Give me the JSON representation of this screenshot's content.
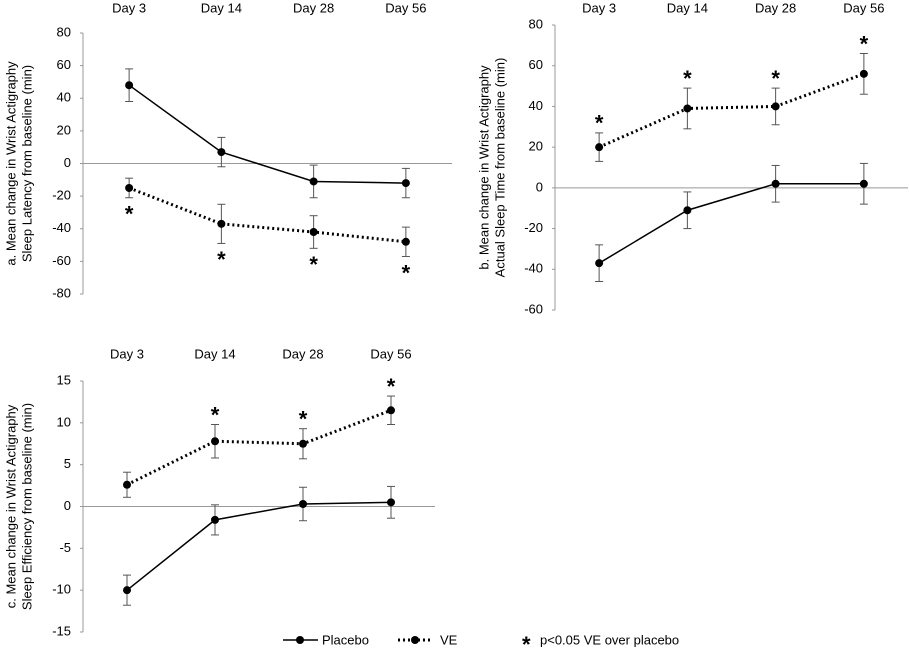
{
  "chart_data": [
    {
      "type": "line",
      "ylabel": [
        "a. Mean change in Wrist Actigraphy",
        "Sleep Latency from baseline (min)"
      ],
      "categories": [
        "Day 3",
        "Day 14",
        "Day 28",
        "Day 56"
      ],
      "ylim": [
        -80,
        80
      ],
      "yticks": [
        -80,
        -60,
        -40,
        -20,
        0,
        20,
        40,
        60,
        80
      ],
      "series": [
        {
          "name": "Placebo",
          "color": "#000000",
          "style": "solid",
          "values": [
            48,
            7,
            -11,
            -12
          ],
          "errors": [
            10,
            9,
            10,
            9
          ],
          "significant": [
            false,
            false,
            false,
            false
          ]
        },
        {
          "name": "VE",
          "color": "#000000",
          "style": "dotted",
          "values": [
            -15,
            -37,
            -42,
            -48
          ],
          "errors": [
            6,
            12,
            10,
            9
          ],
          "significant": [
            true,
            true,
            true,
            true
          ]
        }
      ]
    },
    {
      "type": "line",
      "ylabel": [
        "b. Mean change in Wrist Actigraphy",
        "Actual Sleep Time from baseline (min)"
      ],
      "categories": [
        "Day 3",
        "Day 14",
        "Day 28",
        "Day 56"
      ],
      "ylim": [
        -60,
        80
      ],
      "yticks": [
        -60,
        -40,
        -20,
        0,
        20,
        40,
        60,
        80
      ],
      "series": [
        {
          "name": "Placebo",
          "color": "#000000",
          "style": "solid",
          "values": [
            -37,
            -11,
            2,
            2
          ],
          "errors": [
            9,
            9,
            9,
            10
          ],
          "significant": [
            false,
            false,
            false,
            false
          ]
        },
        {
          "name": "VE",
          "color": "#000000",
          "style": "dotted",
          "values": [
            20,
            39,
            40,
            56
          ],
          "errors": [
            7,
            10,
            9,
            10
          ],
          "significant": [
            true,
            true,
            true,
            true
          ]
        }
      ]
    },
    {
      "type": "line",
      "ylabel": [
        "c. Mean change in Wrist Actigraphy",
        "Sleep Efficiency from baseline (min)"
      ],
      "categories": [
        "Day 3",
        "Day 14",
        "Day 28",
        "Day 56"
      ],
      "ylim": [
        -15,
        15
      ],
      "yticks": [
        -15,
        -10,
        -5,
        0,
        5,
        10,
        15
      ],
      "series": [
        {
          "name": "Placebo",
          "color": "#000000",
          "style": "solid",
          "values": [
            -10,
            -1.6,
            0.3,
            0.5
          ],
          "errors": [
            1.8,
            1.8,
            2,
            1.9
          ],
          "significant": [
            false,
            false,
            false,
            false
          ]
        },
        {
          "name": "VE",
          "color": "#000000",
          "style": "dotted",
          "values": [
            2.6,
            7.8,
            7.5,
            11.5
          ],
          "errors": [
            1.5,
            2,
            1.8,
            1.7
          ],
          "significant": [
            false,
            true,
            true,
            true
          ]
        }
      ]
    }
  ],
  "legend": {
    "symbol": "*",
    "note": "p<0.05 VE over placebo"
  }
}
